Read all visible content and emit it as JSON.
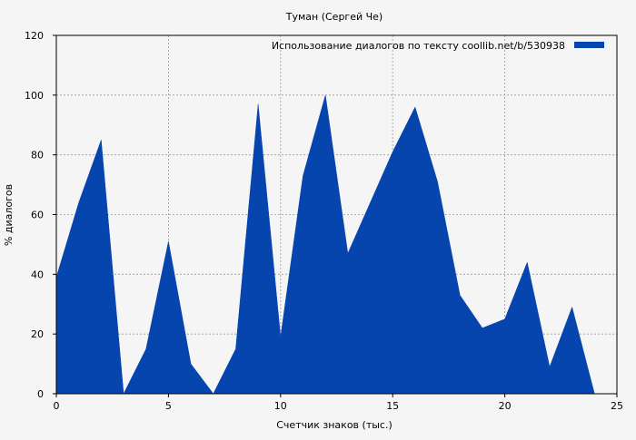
{
  "chart_data": {
    "type": "area",
    "title": "Туман (Сергей Че)",
    "xlabel": "Счетчик знаков (тыс.)",
    "ylabel": "% диалогов",
    "xlim": [
      0,
      25
    ],
    "ylim": [
      0,
      120
    ],
    "xticks": [
      0,
      5,
      10,
      15,
      20,
      25
    ],
    "yticks": [
      0,
      20,
      40,
      60,
      80,
      100,
      120
    ],
    "grid": true,
    "legend_position": "top-right",
    "series": [
      {
        "name": "Использование диалогов по тексту  coollib.net/b/530938",
        "color": "#0645ad",
        "x": [
          0,
          1,
          2,
          3,
          4,
          5,
          6,
          7,
          8,
          9,
          10,
          11,
          12,
          13,
          14,
          15,
          16,
          17,
          18,
          19,
          20,
          21,
          22,
          23,
          24
        ],
        "y": [
          39,
          64,
          85,
          0,
          15,
          51,
          10,
          0,
          15,
          97,
          19,
          73,
          100,
          47,
          64,
          81,
          96,
          71,
          33,
          22,
          25,
          44,
          9,
          29,
          0
        ]
      }
    ]
  }
}
